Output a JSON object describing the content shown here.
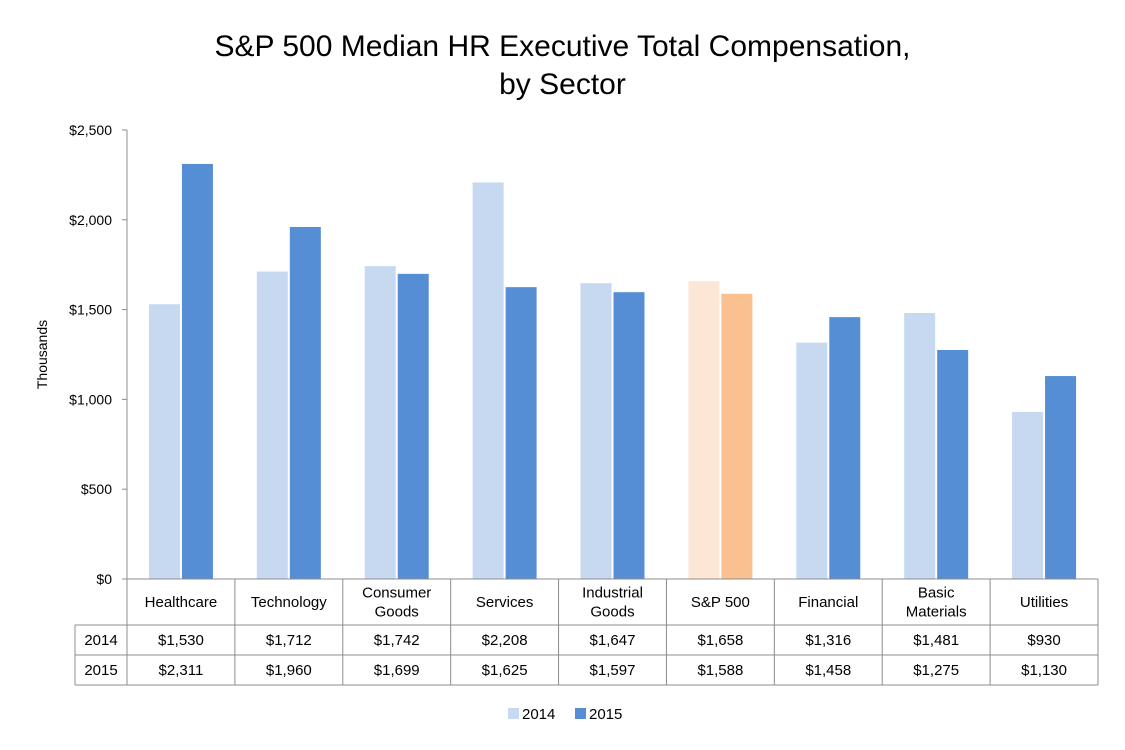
{
  "chart_data": {
    "type": "bar",
    "title_line1": "S&P 500 Median HR Executive Total Compensation,",
    "title_line2": "by Sector",
    "xlabel": "",
    "ylabel": "Thousands",
    "ylim": [
      0,
      2500
    ],
    "yticks": [
      "$0",
      "$500",
      "$1,000",
      "$1,500",
      "$2,000",
      "$2,500"
    ],
    "grid": false,
    "legend_position": "bottom",
    "categories": [
      [
        "Healthcare"
      ],
      [
        "Technology"
      ],
      [
        "Consumer",
        "Goods"
      ],
      [
        "Services"
      ],
      [
        "Industrial",
        "Goods"
      ],
      [
        "S&P 500"
      ],
      [
        "Financial"
      ],
      [
        "Basic",
        "Materials"
      ],
      [
        "Utilities"
      ]
    ],
    "highlight_category_index": 5,
    "series": [
      {
        "name": "2014",
        "color": "#c6d9f0",
        "highlight_color": "#fce7d6",
        "values": [
          1530,
          1712,
          1742,
          2208,
          1647,
          1658,
          1316,
          1481,
          930
        ],
        "labels": [
          "$1,530",
          "$1,712",
          "$1,742",
          "$2,208",
          "$1,647",
          "$1,658",
          "$1,316",
          "$1,481",
          "$930"
        ]
      },
      {
        "name": "2015",
        "color": "#558ed5",
        "highlight_color": "#fac090",
        "values": [
          2311,
          1960,
          1699,
          1625,
          1597,
          1588,
          1458,
          1275,
          1130
        ],
        "labels": [
          "$2,311",
          "$1,960",
          "$1,699",
          "$1,625",
          "$1,597",
          "$1,588",
          "$1,458",
          "$1,275",
          "$1,130"
        ]
      }
    ]
  }
}
